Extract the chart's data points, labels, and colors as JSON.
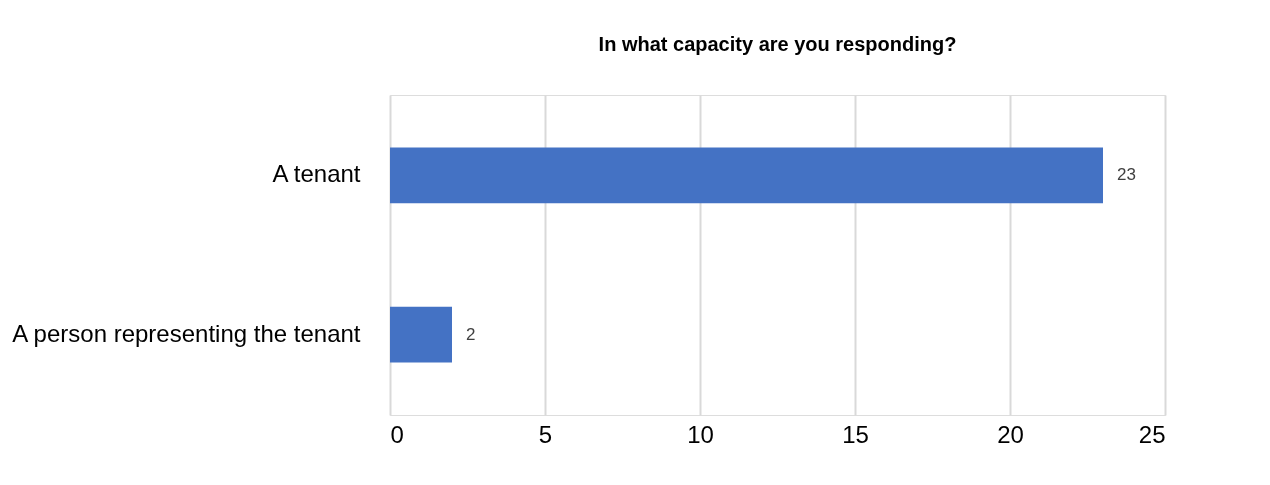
{
  "chart_data": {
    "type": "bar",
    "orientation": "horizontal",
    "title": "In what capacity are you responding?",
    "categories": [
      "A tenant",
      "A person representing the tenant"
    ],
    "values": [
      23,
      2
    ],
    "color": "#4472c4",
    "xlim": [
      0,
      25
    ],
    "xticks": [
      0,
      5,
      10,
      15,
      20,
      25
    ],
    "grid": "x",
    "data_labels": true
  }
}
